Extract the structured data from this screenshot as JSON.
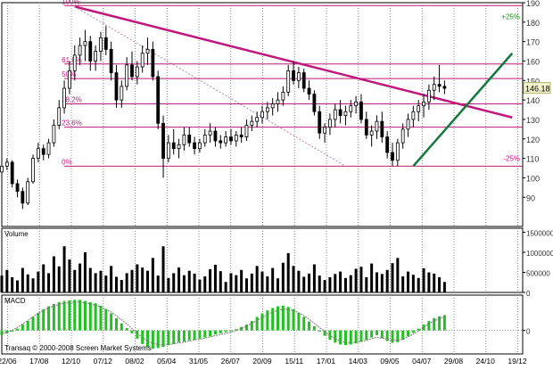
{
  "chart_data": [
    {
      "type": "candlestick",
      "panel": "price",
      "ylim": [
        75,
        190
      ],
      "y_ticks": [
        90,
        100,
        110,
        120,
        130,
        140,
        150,
        160,
        170,
        180,
        190
      ],
      "x_ticks": [
        "22/06",
        "17/08",
        "12/10",
        "07/12",
        "08/02",
        "05/04",
        "31/05",
        "26/07",
        "20/09",
        "15/11",
        "17/01",
        "14/03",
        "09/05",
        "04/07",
        "29/08",
        "24/10",
        "19/12"
      ],
      "last_price": "146.18",
      "last_price_value": 146.18,
      "fib_levels": [
        {
          "label": "100%",
          "value": 188.5
        },
        {
          "label": "61.8%",
          "value": 158.5
        },
        {
          "label": "50%",
          "value": 151
        },
        {
          "label": "38.2%",
          "value": 138
        },
        {
          "label": "23.6%",
          "value": 126
        },
        {
          "label": "0%",
          "value": 106
        }
      ],
      "annotations": [
        {
          "label": "+25%",
          "value": 183
        },
        {
          "label": "-25%",
          "value": 110
        }
      ],
      "trendlines": [
        {
          "name": "downtrend",
          "color": "#c0187a",
          "from": [
            0.14,
            188
          ],
          "to": [
            0.98,
            131
          ]
        },
        {
          "name": "uptrend",
          "color": "#127a3c",
          "from": [
            0.79,
            106
          ],
          "to": [
            0.98,
            164
          ]
        },
        {
          "name": "dotted",
          "color": "#c080b0",
          "from": [
            0.14,
            188
          ],
          "to": [
            0.66,
            106
          ]
        }
      ],
      "series": [
        {
          "values": [
            [
              0.0,
              103,
              108,
              101,
              106
            ],
            [
              0.01,
              106,
              110,
              104,
              108
            ],
            [
              0.02,
              108,
              109,
              95,
              97
            ],
            [
              0.03,
              97,
              99,
              90,
              93
            ],
            [
              0.04,
              93,
              95,
              84,
              87
            ],
            [
              0.05,
              87,
              100,
              86,
              98
            ],
            [
              0.06,
              98,
              112,
              97,
              110
            ],
            [
              0.07,
              110,
              118,
              108,
              115
            ],
            [
              0.08,
              115,
              117,
              109,
              112
            ],
            [
              0.09,
              112,
              120,
              110,
              118
            ],
            [
              0.1,
              118,
              130,
              116,
              127
            ],
            [
              0.11,
              127,
              140,
              125,
              136
            ],
            [
              0.12,
              136,
              150,
              133,
              146
            ],
            [
              0.13,
              146,
              160,
              143,
              155
            ],
            [
              0.14,
              155,
              168,
              150,
              163
            ],
            [
              0.15,
              163,
              172,
              158,
              168
            ],
            [
              0.16,
              168,
              176,
              160,
              170
            ],
            [
              0.17,
              170,
              173,
              155,
              160
            ],
            [
              0.18,
              160,
              168,
              155,
              165
            ],
            [
              0.19,
              165,
              175,
              160,
              172
            ],
            [
              0.2,
              172,
              178,
              163,
              166
            ],
            [
              0.21,
              166,
              170,
              150,
              154
            ],
            [
              0.22,
              154,
              158,
              136,
              140
            ],
            [
              0.23,
              140,
              150,
              136,
              147
            ],
            [
              0.24,
              147,
              162,
              145,
              158
            ],
            [
              0.25,
              158,
              165,
              150,
              152
            ],
            [
              0.26,
              152,
              160,
              148,
              157
            ],
            [
              0.27,
              157,
              168,
              154,
              164
            ],
            [
              0.28,
              164,
              172,
              158,
              166
            ],
            [
              0.29,
              166,
              170,
              150,
              152
            ],
            [
              0.3,
              152,
              155,
              125,
              128
            ],
            [
              0.31,
              128,
              132,
              100,
              110
            ],
            [
              0.32,
              110,
              122,
              108,
              118
            ],
            [
              0.33,
              118,
              125,
              112,
              115
            ],
            [
              0.34,
              115,
              120,
              110,
              117
            ],
            [
              0.35,
              117,
              126,
              114,
              122
            ],
            [
              0.36,
              122,
              126,
              116,
              118
            ],
            [
              0.37,
              118,
              121,
              112,
              115
            ],
            [
              0.38,
              115,
              120,
              113,
              118
            ],
            [
              0.39,
              118,
              125,
              116,
              122
            ],
            [
              0.4,
              122,
              128,
              118,
              124
            ],
            [
              0.41,
              124,
              126,
              116,
              119
            ],
            [
              0.42,
              119,
              122,
              115,
              118
            ],
            [
              0.43,
              118,
              124,
              116,
              121
            ],
            [
              0.44,
              121,
              125,
              117,
              119
            ],
            [
              0.45,
              119,
              124,
              116,
              122
            ],
            [
              0.46,
              122,
              126,
              118,
              121
            ],
            [
              0.47,
              121,
              130,
              119,
              127
            ],
            [
              0.48,
              127,
              132,
              124,
              129
            ],
            [
              0.49,
              129,
              134,
              126,
              131
            ],
            [
              0.5,
              131,
              137,
              128,
              134
            ],
            [
              0.51,
              134,
              139,
              130,
              136
            ],
            [
              0.52,
              136,
              141,
              132,
              138
            ],
            [
              0.53,
              138,
              144,
              134,
              140
            ],
            [
              0.54,
              140,
              147,
              137,
              144
            ],
            [
              0.55,
              144,
              158,
              142,
              155
            ],
            [
              0.56,
              155,
              160,
              148,
              150
            ],
            [
              0.57,
              150,
              157,
              146,
              154
            ],
            [
              0.58,
              154,
              156,
              144,
              146
            ],
            [
              0.59,
              146,
              150,
              140,
              143
            ],
            [
              0.6,
              143,
              145,
              132,
              134
            ],
            [
              0.61,
              134,
              137,
              120,
              123
            ],
            [
              0.62,
              123,
              128,
              118,
              126
            ],
            [
              0.63,
              126,
              133,
              122,
              130
            ],
            [
              0.64,
              130,
              138,
              126,
              135
            ],
            [
              0.65,
              135,
              140,
              128,
              132
            ],
            [
              0.66,
              132,
              137,
              127,
              134
            ],
            [
              0.67,
              134,
              140,
              131,
              137
            ],
            [
              0.68,
              137,
              142,
              133,
              139
            ],
            [
              0.69,
              139,
              143,
              128,
              130
            ],
            [
              0.7,
              130,
              134,
              120,
              122
            ],
            [
              0.71,
              122,
              127,
              116,
              124
            ],
            [
              0.72,
              124,
              132,
              120,
              129
            ],
            [
              0.73,
              129,
              134,
              118,
              121
            ],
            [
              0.74,
              121,
              124,
              110,
              113
            ],
            [
              0.75,
              113,
              118,
              106,
              109
            ],
            [
              0.76,
              109,
              120,
              106,
              118
            ],
            [
              0.77,
              118,
              128,
              115,
              125
            ],
            [
              0.78,
              125,
              133,
              121,
              130
            ],
            [
              0.79,
              130,
              137,
              126,
              134
            ],
            [
              0.8,
              134,
              140,
              129,
              137
            ],
            [
              0.81,
              137,
              143,
              131,
              139
            ],
            [
              0.82,
              139,
              148,
              135,
              145
            ],
            [
              0.83,
              145,
              152,
              140,
              148
            ],
            [
              0.84,
              148,
              158,
              144,
              147
            ],
            [
              0.85,
              147,
              150,
              143,
              146
            ]
          ]
        }
      ]
    },
    {
      "type": "bar",
      "panel": "volume",
      "title": "Volume",
      "ylim": [
        0,
        1600000
      ],
      "y_ticks": [
        {
          "label": "1500000",
          "value": 1500000
        },
        {
          "label": "1000000",
          "value": 1000000
        },
        {
          "label": "500000",
          "value": 500000
        },
        {
          "label": "0",
          "value": 0
        }
      ],
      "values": [
        420000,
        560000,
        380000,
        300000,
        610000,
        450000,
        350000,
        520000,
        700000,
        480000,
        900000,
        650000,
        1150000,
        820000,
        560000,
        720000,
        1000000,
        610000,
        480000,
        540000,
        420000,
        660000,
        390000,
        310000,
        480000,
        560000,
        700000,
        620000,
        540000,
        860000,
        420000,
        1150000,
        360000,
        480000,
        620000,
        430000,
        540000,
        470000,
        320000,
        400000,
        580000,
        690000,
        530000,
        260000,
        480000,
        430000,
        560000,
        350000,
        470000,
        660000,
        520000,
        400000,
        610000,
        350000,
        740000,
        980000,
        660000,
        540000,
        390000,
        470000,
        700000,
        420000,
        310000,
        380000,
        460000,
        520000,
        360000,
        430000,
        590000,
        640000,
        380000,
        720000,
        500000,
        460000,
        560000,
        730000,
        860000,
        400000,
        520000,
        440000,
        360000,
        600000,
        500000,
        470000,
        380000,
        260000
      ]
    },
    {
      "type": "bar",
      "panel": "macd",
      "title": "MACD",
      "ylim": [
        -4,
        6
      ],
      "y_ticks": [
        {
          "label": "0",
          "value": 0
        }
      ],
      "values": [
        -0.8,
        -0.5,
        -0.2,
        0.3,
        1.0,
        1.6,
        2.3,
        3.0,
        3.6,
        4.1,
        4.5,
        4.8,
        5.0,
        5.1,
        5.2,
        5.2,
        5.0,
        4.8,
        4.6,
        4.2,
        3.6,
        2.9,
        2.1,
        1.2,
        0.4,
        -0.5,
        -1.4,
        -2.3,
        -2.8,
        -3.1,
        -3.0,
        -2.8,
        -2.5,
        -2.3,
        -2.0,
        -1.9,
        -1.7,
        -1.6,
        -1.4,
        -1.2,
        -1.0,
        -0.7,
        -0.5,
        -0.3,
        -0.1,
        0.2,
        0.6,
        1.0,
        1.6,
        2.3,
        2.9,
        3.4,
        3.8,
        4.1,
        4.2,
        4.0,
        3.6,
        3.0,
        2.3,
        1.5,
        0.7,
        -0.2,
        -0.9,
        -1.6,
        -2.1,
        -2.4,
        -2.5,
        -2.4,
        -2.2,
        -1.9,
        -1.6,
        -1.2,
        -0.8,
        -1.3,
        -1.8,
        -2.1,
        -2.0,
        -1.6,
        -1.0,
        -0.4,
        0.3,
        1.0,
        1.6,
        2.1,
        2.4,
        2.6
      ],
      "signal": [
        -0.5,
        -0.3,
        0.0,
        0.5,
        1.1,
        1.7,
        2.3,
        2.9,
        3.4,
        3.8,
        4.2,
        4.4,
        4.6,
        4.7,
        4.8,
        4.8,
        4.7,
        4.5,
        4.3,
        4.0,
        3.6,
        3.1,
        2.5,
        1.8,
        1.1,
        0.3,
        -0.5,
        -1.2,
        -1.8,
        -2.2,
        -2.4,
        -2.5,
        -2.4,
        -2.3,
        -2.1,
        -2.0,
        -1.8,
        -1.6,
        -1.5,
        -1.3,
        -1.1,
        -0.9,
        -0.7,
        -0.5,
        -0.3,
        0.0,
        0.3,
        0.7,
        1.2,
        1.7,
        2.2,
        2.7,
        3.1,
        3.4,
        3.6,
        3.6,
        3.4,
        3.0,
        2.5,
        1.9,
        1.2,
        0.5,
        -0.2,
        -0.9,
        -1.4,
        -1.8,
        -2.0,
        -2.1,
        -2.0,
        -1.9,
        -1.7,
        -1.4,
        -1.2,
        -1.3,
        -1.5,
        -1.7,
        -1.7,
        -1.5,
        -1.1,
        -0.6,
        -0.1,
        0.5,
        1.1,
        1.6,
        2.0,
        2.3
      ],
      "footer": "Transaq © 2000-2008 Screen Market Systems"
    }
  ],
  "colors": {
    "fib": "#c0187a",
    "downtrend": "#c0187a",
    "uptrend": "#127a3c",
    "grid": "#888888",
    "macd_bar": "#22c022",
    "price_tag_bg": "#f3f3cc"
  }
}
